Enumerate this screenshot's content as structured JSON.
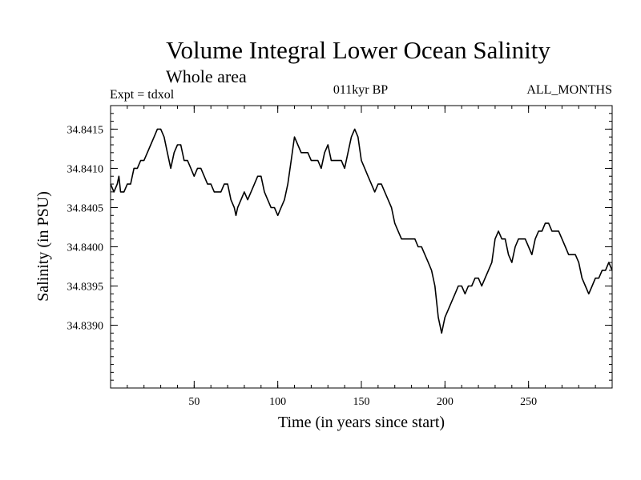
{
  "chart_data": {
    "type": "line",
    "title": "Volume Integral Lower Ocean Salinity",
    "subtitle": "Whole area",
    "annotations": {
      "left": "Expt = tdxol",
      "center": "011kyr BP",
      "right": "ALL_MONTHS"
    },
    "xlabel": "Time (in years since start)",
    "ylabel": "Salinity (in PSU)",
    "xlim": [
      0,
      300
    ],
    "ylim": [
      34.8382,
      34.8418
    ],
    "xticks": [
      50,
      100,
      150,
      200,
      250
    ],
    "xtick_labels": [
      "50",
      "100",
      "150",
      "200",
      "250"
    ],
    "yticks": [
      34.839,
      34.8395,
      34.84,
      34.8405,
      34.841,
      34.8415
    ],
    "ytick_labels": [
      "34.8390",
      "34.8395",
      "34.8400",
      "34.8405",
      "34.8410",
      "34.8415"
    ],
    "grid": false,
    "series": [
      {
        "x": [
          0,
          2,
          4,
          5,
          6,
          8,
          10,
          12,
          14,
          16,
          18,
          20,
          22,
          24,
          26,
          28,
          30,
          32,
          34,
          36,
          38,
          40,
          42,
          44,
          46,
          48,
          50,
          52,
          54,
          56,
          58,
          60,
          62,
          64,
          66,
          68,
          70,
          72,
          74,
          75,
          76,
          78,
          80,
          82,
          84,
          86,
          88,
          90,
          92,
          94,
          96,
          98,
          100,
          102,
          104,
          106,
          108,
          110,
          112,
          114,
          116,
          118,
          120,
          122,
          124,
          126,
          128,
          130,
          132,
          134,
          136,
          138,
          140,
          142,
          144,
          146,
          148,
          150,
          152,
          154,
          156,
          158,
          160,
          162,
          164,
          166,
          168,
          170,
          172,
          174,
          176,
          178,
          180,
          182,
          184,
          186,
          188,
          190,
          192,
          194,
          196,
          198,
          199,
          200,
          202,
          204,
          206,
          208,
          210,
          212,
          214,
          216,
          218,
          220,
          222,
          224,
          226,
          228,
          230,
          232,
          234,
          236,
          238,
          240,
          242,
          244,
          246,
          248,
          250,
          252,
          254,
          256,
          258,
          260,
          262,
          264,
          266,
          268,
          270,
          272,
          274,
          276,
          278,
          280,
          282,
          284,
          286,
          288,
          290,
          292,
          294,
          296,
          298,
          300
        ],
        "values": [
          34.8408,
          34.8407,
          34.8408,
          34.8409,
          34.8407,
          34.8407,
          34.8408,
          34.8408,
          34.841,
          34.841,
          34.8411,
          34.8411,
          34.8412,
          34.8413,
          34.8414,
          34.8415,
          34.8415,
          34.8414,
          34.8412,
          34.841,
          34.8412,
          34.8413,
          34.8413,
          34.8411,
          34.8411,
          34.841,
          34.8409,
          34.841,
          34.841,
          34.8409,
          34.8408,
          34.8408,
          34.8407,
          34.8407,
          34.8407,
          34.8408,
          34.8408,
          34.8406,
          34.8405,
          34.8404,
          34.8405,
          34.8406,
          34.8407,
          34.8406,
          34.8407,
          34.8408,
          34.8409,
          34.8409,
          34.8407,
          34.8406,
          34.8405,
          34.8405,
          34.8404,
          34.8405,
          34.8406,
          34.8408,
          34.8411,
          34.8414,
          34.8413,
          34.8412,
          34.8412,
          34.8412,
          34.8411,
          34.8411,
          34.8411,
          34.841,
          34.8412,
          34.8413,
          34.8411,
          34.8411,
          34.8411,
          34.8411,
          34.841,
          34.8412,
          34.8414,
          34.8415,
          34.8414,
          34.8411,
          34.841,
          34.8409,
          34.8408,
          34.8407,
          34.8408,
          34.8408,
          34.8407,
          34.8406,
          34.8405,
          34.8403,
          34.8402,
          34.8401,
          34.8401,
          34.8401,
          34.8401,
          34.8401,
          34.84,
          34.84,
          34.8399,
          34.8398,
          34.8397,
          34.8395,
          34.8391,
          34.8389,
          34.839,
          34.8391,
          34.8392,
          34.8393,
          34.8394,
          34.8395,
          34.8395,
          34.8394,
          34.8395,
          34.8395,
          34.8396,
          34.8396,
          34.8395,
          34.8396,
          34.8397,
          34.8398,
          34.8401,
          34.8402,
          34.8401,
          34.8401,
          34.8399,
          34.8398,
          34.84,
          34.8401,
          34.8401,
          34.8401,
          34.84,
          34.8399,
          34.8401,
          34.8402,
          34.8402,
          34.8403,
          34.8403,
          34.8402,
          34.8402,
          34.8402,
          34.8401,
          34.84,
          34.8399,
          34.8399,
          34.8399,
          34.8398,
          34.8396,
          34.8395,
          34.8394,
          34.8395,
          34.8396,
          34.8396,
          34.8397,
          34.8397,
          34.8398,
          34.8397
        ]
      }
    ]
  }
}
